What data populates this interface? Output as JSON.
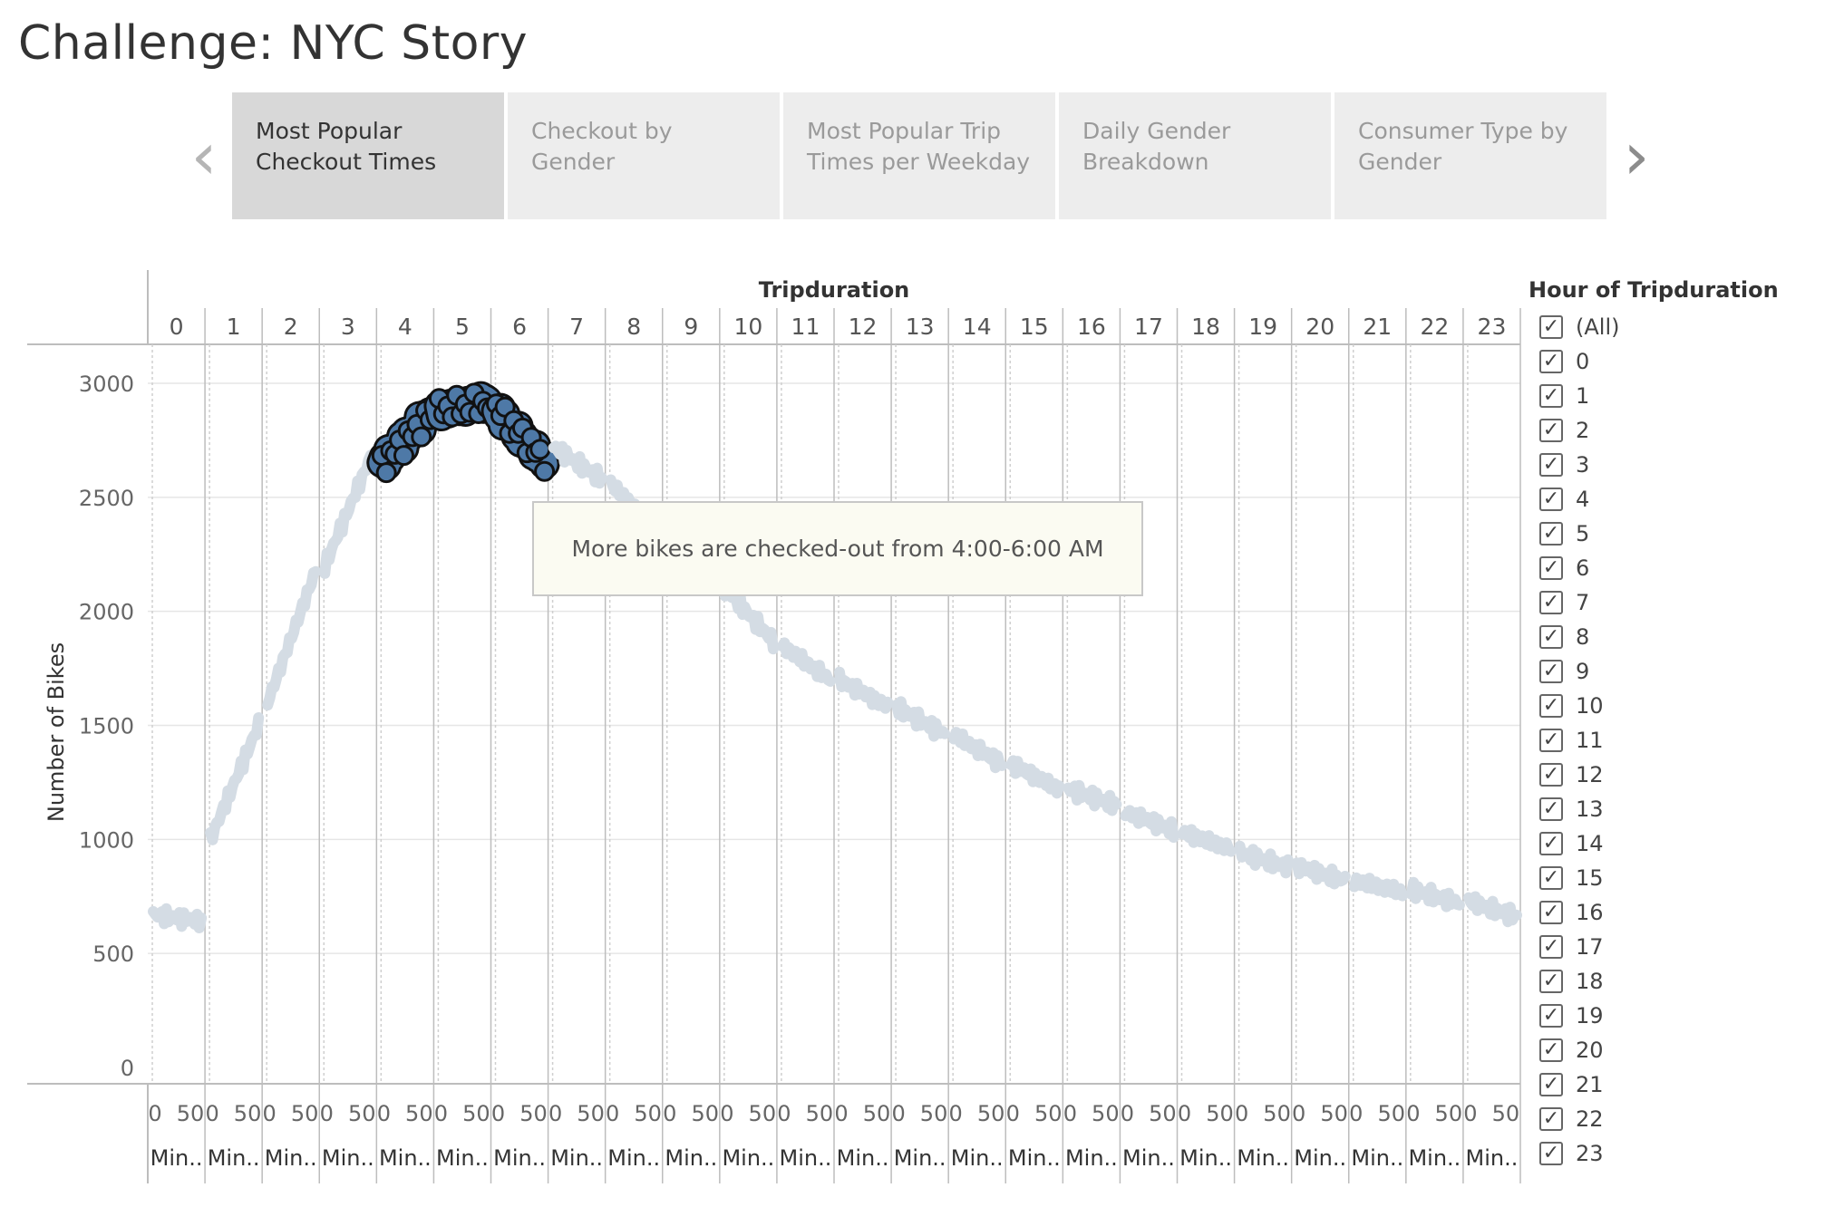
{
  "page": {
    "title": "Challenge: NYC Story"
  },
  "story": {
    "prev_icon": "chevron-left-icon",
    "next_icon": "chevron-right-icon",
    "points": [
      {
        "label": "Most Popular\nCheckout Times",
        "active": true
      },
      {
        "label": "Checkout by Gender",
        "active": false
      },
      {
        "label": "Most Popular Trip\nTimes per Weekday",
        "active": false
      },
      {
        "label": "Daily Gender\nBreakdown",
        "active": false
      },
      {
        "label": "Consumer Type by\nGender",
        "active": false
      }
    ]
  },
  "annotation": {
    "text": "More bikes are checked-out from 4:00-6:00 AM"
  },
  "filter": {
    "title": "Hour of Tripduration",
    "check_glyph": "✓",
    "items": [
      "(All)",
      "0",
      "1",
      "2",
      "3",
      "4",
      "5",
      "6",
      "7",
      "8",
      "9",
      "10",
      "11",
      "12",
      "13",
      "14",
      "15",
      "16",
      "17",
      "18",
      "19",
      "20",
      "21",
      "22",
      "23"
    ]
  },
  "colors": {
    "highlight": "#4e79a7",
    "dimmed": "#d4dce4",
    "gridline": "#e6e6e6",
    "panel_divider": "#bdbdbd"
  },
  "chart_data": {
    "type": "area",
    "title": "",
    "xlabel": "Tripduration",
    "ylabel": "Number of Bikes",
    "ylim": [
      0,
      3000
    ],
    "yticks": [
      0,
      500,
      1000,
      1500,
      2000,
      2500,
      3000
    ],
    "panels": [
      "0",
      "1",
      "2",
      "3",
      "4",
      "5",
      "6",
      "7",
      "8",
      "9",
      "10",
      "11",
      "12",
      "13",
      "14",
      "15",
      "16",
      "17",
      "18",
      "19",
      "20",
      "21",
      "22",
      "23"
    ],
    "panel_tick_labels": [
      "0",
      "50"
    ],
    "panel_unit_label": "Min..",
    "highlighted_panels": [
      "4",
      "5",
      "6"
    ],
    "series": [
      {
        "hour": 0,
        "values": [
          670,
          640
        ]
      },
      {
        "hour": 1,
        "values": [
          1000,
          1500
        ]
      },
      {
        "hour": 2,
        "values": [
          1600,
          2180
        ]
      },
      {
        "hour": 3,
        "values": [
          2200,
          2700
        ]
      },
      {
        "hour": 4,
        "values": [
          2650,
          2870
        ]
      },
      {
        "hour": 5,
        "values": [
          2880,
          2920
        ]
      },
      {
        "hour": 6,
        "values": [
          2880,
          2660
        ]
      },
      {
        "hour": 7,
        "values": [
          2720,
          2580
        ]
      },
      {
        "hour": 8,
        "values": [
          2560,
          2350
        ]
      },
      {
        "hour": 9,
        "values": [
          2340,
          2120
        ]
      },
      {
        "hour": 10,
        "values": [
          2100,
          1870
        ]
      },
      {
        "hour": 11,
        "values": [
          1850,
          1700
        ]
      },
      {
        "hour": 12,
        "values": [
          1700,
          1580
        ]
      },
      {
        "hour": 13,
        "values": [
          1580,
          1460
        ]
      },
      {
        "hour": 14,
        "values": [
          1460,
          1330
        ]
      },
      {
        "hour": 15,
        "values": [
          1330,
          1220
        ]
      },
      {
        "hour": 16,
        "values": [
          1220,
          1150
        ]
      },
      {
        "hour": 17,
        "values": [
          1120,
          1040
        ]
      },
      {
        "hour": 18,
        "values": [
          1030,
          960
        ]
      },
      {
        "hour": 19,
        "values": [
          940,
          880
        ]
      },
      {
        "hour": 20,
        "values": [
          880,
          820
        ]
      },
      {
        "hour": 21,
        "values": [
          820,
          770
        ]
      },
      {
        "hour": 22,
        "values": [
          780,
          720
        ]
      },
      {
        "hour": 23,
        "values": [
          730,
          660
        ]
      }
    ]
  }
}
